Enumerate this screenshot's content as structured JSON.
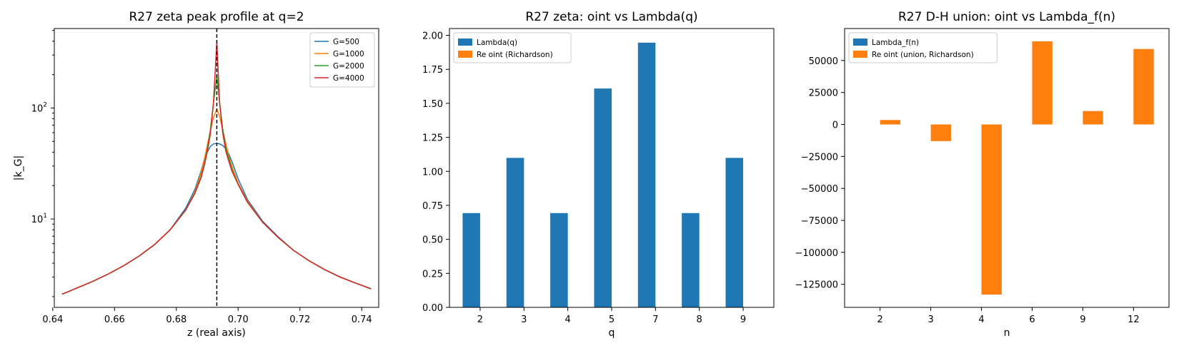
{
  "chart_data": [
    {
      "type": "line",
      "title": "R27 zeta peak profile at q=2",
      "xlabel": "z (real axis)",
      "ylabel": "|k_G|",
      "xlim": [
        0.6405,
        0.7455
      ],
      "ylim": [
        1.6,
        520
      ],
      "yscale": "log",
      "grid": false,
      "legend_position": "upper right",
      "x_ticks": [
        0.64,
        0.66,
        0.68,
        0.7,
        0.72,
        0.74
      ],
      "x_tick_labels": [
        "0.64",
        "0.66",
        "0.68",
        "0.70",
        "0.72",
        "0.74"
      ],
      "y_ticks": [
        10,
        100
      ],
      "y_tick_labels": [
        "10^1",
        "10^2"
      ],
      "vline": {
        "x": 0.6931,
        "style": "dashed",
        "color": "#000000"
      },
      "x": [
        0.643,
        0.648,
        0.653,
        0.658,
        0.663,
        0.668,
        0.673,
        0.678,
        0.683,
        0.686,
        0.688,
        0.689,
        0.69,
        0.691,
        0.692,
        0.6931,
        0.694,
        0.695,
        0.696,
        0.697,
        0.698,
        0.7,
        0.703,
        0.708,
        0.713,
        0.718,
        0.723,
        0.728,
        0.733,
        0.738,
        0.743
      ],
      "series": [
        {
          "name": "G=500",
          "color": "#1f77b4",
          "values": [
            2.1,
            2.4,
            2.75,
            3.2,
            3.8,
            4.65,
            5.9,
            8.0,
            12.5,
            18.5,
            27,
            34,
            40,
            45,
            47.5,
            48,
            47.5,
            46,
            43,
            38.5,
            33,
            23,
            15,
            9.5,
            6.9,
            5.2,
            4.2,
            3.5,
            3.0,
            2.65,
            2.35
          ]
        },
        {
          "name": "G=1000",
          "color": "#ff7f0e",
          "values": [
            2.1,
            2.4,
            2.75,
            3.2,
            3.8,
            4.65,
            5.9,
            8.0,
            12.0,
            17.5,
            26,
            34,
            46,
            62,
            82,
            97,
            84,
            64,
            48,
            37,
            30,
            21,
            14.5,
            9.3,
            6.8,
            5.2,
            4.2,
            3.5,
            3.0,
            2.65,
            2.35
          ]
        },
        {
          "name": "G=2000",
          "color": "#2ca02c",
          "values": [
            2.1,
            2.4,
            2.75,
            3.2,
            3.8,
            4.65,
            5.9,
            8.0,
            12.0,
            17.0,
            24,
            31,
            42,
            63,
            110,
            195,
            112,
            65,
            44,
            35,
            28,
            20.5,
            14.2,
            9.3,
            6.8,
            5.2,
            4.2,
            3.5,
            3.0,
            2.65,
            2.35
          ]
        },
        {
          "name": "G=4000",
          "color": "#d62728",
          "values": [
            2.1,
            2.4,
            2.75,
            3.2,
            3.8,
            4.65,
            5.9,
            8.0,
            12.0,
            17.0,
            23.5,
            30,
            40,
            58,
            110,
            390,
            112,
            60,
            41,
            33,
            27,
            20.5,
            14.2,
            9.3,
            6.8,
            5.2,
            4.2,
            3.5,
            3.0,
            2.65,
            2.35
          ]
        }
      ]
    },
    {
      "type": "bar",
      "title": "R27 zeta: oint vs Lambda(q)",
      "xlabel": "q",
      "ylabel": "",
      "ylim": [
        0,
        2.05
      ],
      "grid": false,
      "legend_position": "upper left",
      "categories": [
        "2",
        "3",
        "4",
        "5",
        "7",
        "8",
        "9"
      ],
      "y_ticks": [
        0,
        0.25,
        0.5,
        0.75,
        1.0,
        1.25,
        1.5,
        1.75,
        2.0
      ],
      "y_tick_labels": [
        "0.00",
        "0.25",
        "0.50",
        "0.75",
        "1.00",
        "1.25",
        "1.50",
        "1.75",
        "2.00"
      ],
      "series": [
        {
          "name": "Lambda(q)",
          "color": "#1f77b4",
          "values": [
            0.693,
            1.099,
            0.693,
            1.609,
            1.946,
            0.693,
            1.099
          ]
        },
        {
          "name": "Re oint (Richardson)",
          "color": "#ff7f0e",
          "values": [
            0,
            0,
            0,
            0,
            0,
            0,
            0
          ]
        }
      ]
    },
    {
      "type": "bar",
      "title": "R27 D-H union: oint vs Lambda_f(n)",
      "xlabel": "n",
      "ylabel": "",
      "ylim": [
        -143000,
        75000
      ],
      "grid": false,
      "legend_position": "upper left",
      "categories": [
        "2",
        "3",
        "4",
        "6",
        "9",
        "12"
      ],
      "y_ticks": [
        -125000,
        -100000,
        -75000,
        -50000,
        -25000,
        0,
        25000,
        50000
      ],
      "y_tick_labels": [
        "−125000",
        "−100000",
        "−75000",
        "−50000",
        "−25000",
        "0",
        "25000",
        "50000"
      ],
      "series": [
        {
          "name": "Lambda_f(n)",
          "color": "#1f77b4",
          "values": [
            0.693,
            1.099,
            0.693,
            0,
            1.099,
            0
          ]
        },
        {
          "name": "Re oint (union, Richardson)",
          "color": "#ff7f0e",
          "values": [
            3500,
            -13000,
            -133000,
            65000,
            10500,
            59000
          ]
        }
      ]
    }
  ]
}
